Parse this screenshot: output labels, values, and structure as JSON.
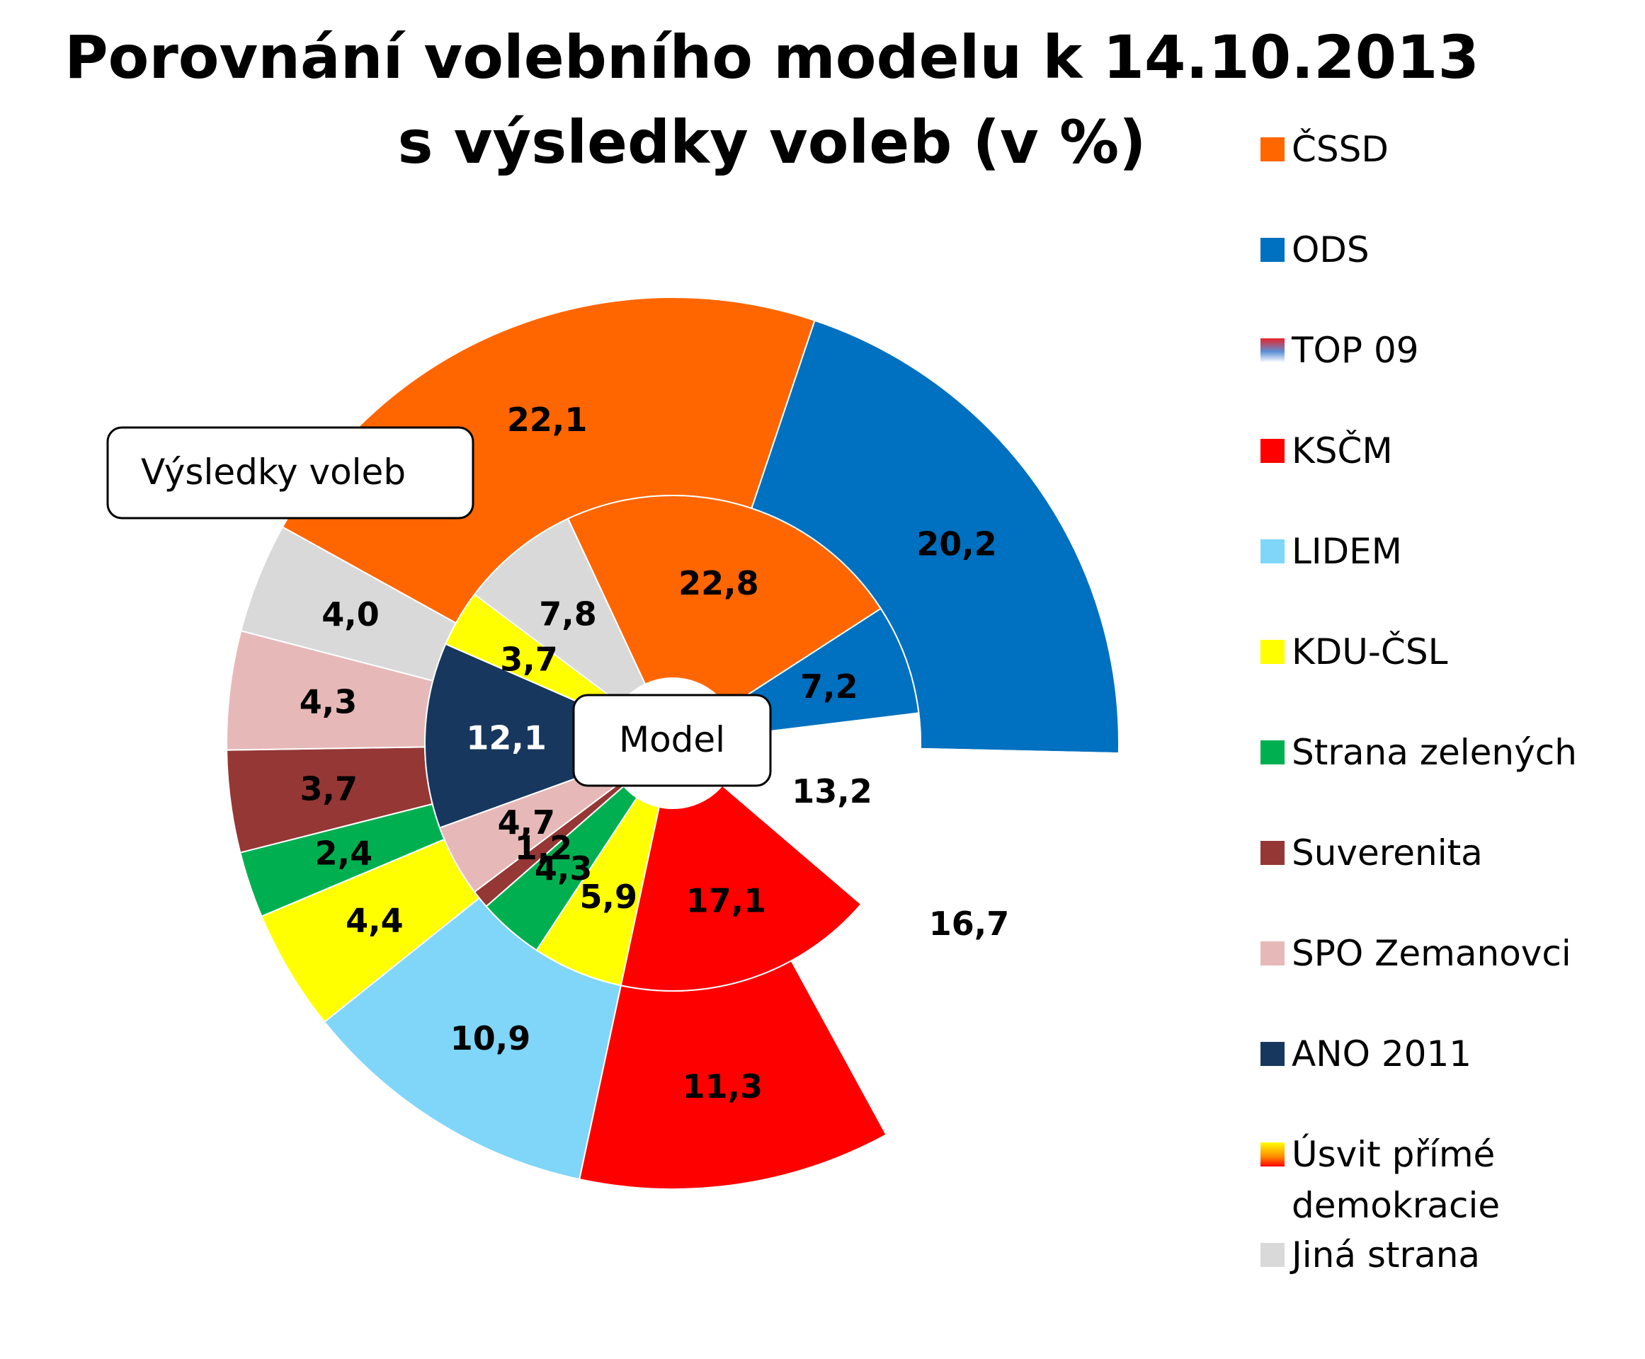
{
  "chart_data": {
    "type": "pie",
    "subtype": "doughnut",
    "title_lines": [
      "Porovnání volebního modelu k 14.10.2013",
      "s výsledky voleb (v %)"
    ],
    "legend_position": "right",
    "categories": [
      "ČSSD",
      "ODS",
      "TOP 09",
      "KSČM",
      "LIDEM",
      "KDU-ČSL",
      "Strana zelených",
      "Suverenita",
      "SPO Zemanovci",
      "ANO 2011",
      "Úsvit přímé demokracie",
      "Jiná strana"
    ],
    "legend_lines": [
      [
        "ČSSD"
      ],
      [
        "ODS"
      ],
      [
        "TOP 09"
      ],
      [
        "KSČM"
      ],
      [
        "LIDEM"
      ],
      [
        "KDU-ČSL"
      ],
      [
        "Strana zelených"
      ],
      [
        "Suverenita"
      ],
      [
        "SPO Zemanovci"
      ],
      [
        "ANO 2011"
      ],
      [
        "Úsvit přímé",
        "demokracie"
      ],
      [
        "Jiná strana"
      ]
    ],
    "colors": [
      "#ff6600",
      "#0070c0",
      "gradient:#e8222b-#5b8fd6-#ffffff",
      "#ff0000",
      "#7fd6f8",
      "#ffff00",
      "#00b050",
      "#953735",
      "#e6b9b8",
      "#17375e",
      "gradient:#ff0000-#ffff00",
      "#d9d9d9"
    ],
    "series": [
      {
        "name": "Výsledky voleb",
        "ring": "outer",
        "values": [
          22.1,
          20.2,
          16.7,
          11.3,
          10.9,
          4.4,
          2.4,
          3.7,
          4.3,
          null,
          null,
          4.0
        ],
        "labels": [
          "22,1",
          "20,2",
          "16,7",
          "11,3",
          "10,9",
          "4,4",
          "2,4",
          "3,7",
          "4,3",
          "",
          "",
          "4,0"
        ]
      },
      {
        "name": "Model",
        "ring": "inner",
        "values": [
          22.8,
          7.2,
          13.2,
          17.1,
          null,
          5.9,
          4.3,
          1.2,
          4.7,
          12.1,
          3.7,
          7.8
        ],
        "labels": [
          "22,8",
          "7,2",
          "13,2",
          "17,1",
          "",
          "5,9",
          "4,3",
          "1,2",
          "4,7",
          "12,1",
          "3,7",
          "7,8"
        ]
      }
    ],
    "callouts": [
      "Výsledky voleb",
      "Model"
    ]
  }
}
